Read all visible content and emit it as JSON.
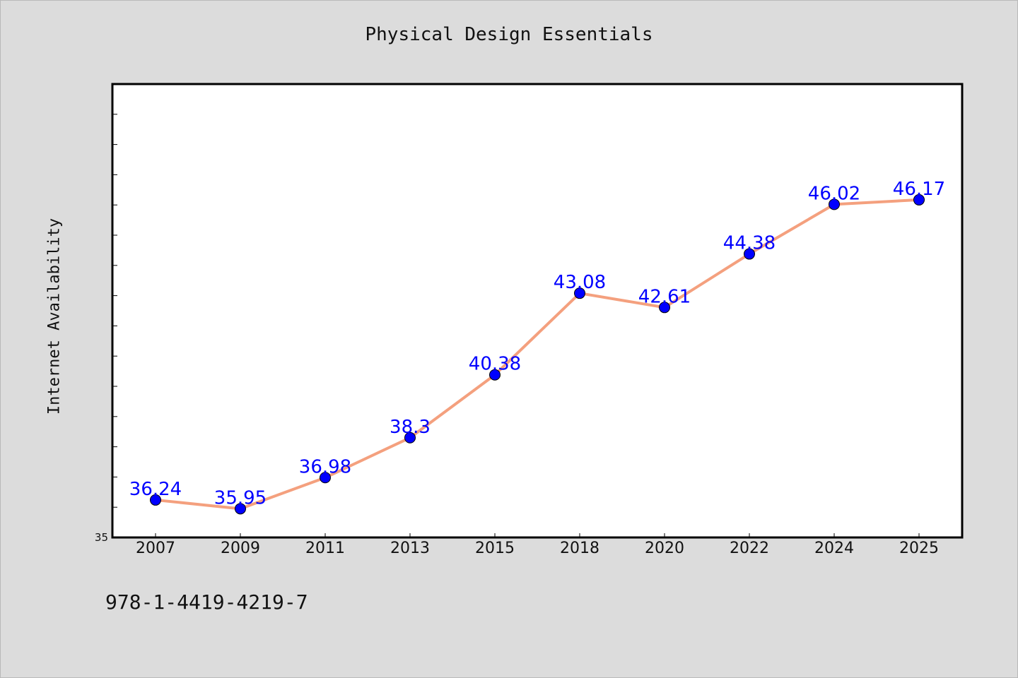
{
  "chart_data": {
    "type": "line",
    "title": "Physical Design Essentials",
    "ylabel": "Internet Availability",
    "xlabel": "",
    "categories": [
      "2007",
      "2009",
      "2011",
      "2013",
      "2015",
      "2018",
      "2020",
      "2022",
      "2024",
      "2025"
    ],
    "series": [
      {
        "values": [
          36.24,
          35.95,
          36.98,
          38.3,
          40.38,
          43.08,
          42.61,
          44.38,
          46.02,
          46.17
        ]
      }
    ],
    "data_labels": [
      "36.24",
      "35.95",
      "36.98",
      "38.3",
      "40.38",
      "43.08",
      "42.61",
      "44.38",
      "46.02",
      "46.17"
    ],
    "ylim": [
      35,
      50
    ],
    "y_tick_label": "35",
    "grid": false,
    "line_color": "#f4a07e",
    "marker_color": "#0000ff",
    "label_color": "#0000ff"
  },
  "footer": {
    "isbn": "978-1-4419-4219-7"
  }
}
